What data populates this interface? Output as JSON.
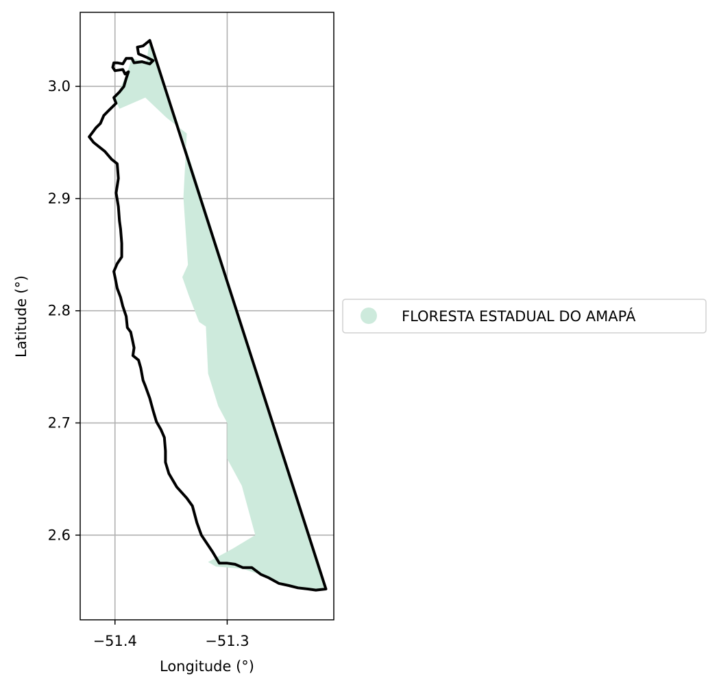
{
  "chart_data": {
    "type": "map",
    "xlabel": "Longitude (°)",
    "ylabel": "Latitude (°)",
    "xlim": [
      -51.431,
      -51.205
    ],
    "ylim": [
      2.5245,
      3.066
    ],
    "x_ticks": [
      -51.4,
      -51.3
    ],
    "x_tick_labels": [
      "−51.4",
      "−51.3"
    ],
    "y_ticks": [
      2.6,
      2.7,
      2.8,
      2.9,
      3.0
    ],
    "y_tick_labels": [
      "2.6",
      "2.7",
      "2.8",
      "2.9",
      "3.0"
    ],
    "grid": true,
    "legend": {
      "placement": "center-left outside",
      "entries": [
        {
          "label": "FLORESTA ESTADUAL DO AMAPÁ",
          "color": "#cdeadc",
          "marker": "circle"
        }
      ]
    },
    "layers": [
      {
        "name": "FLORESTA ESTADUAL DO AMAPÁ",
        "kind": "polygon-fill",
        "color": "#cdeadc",
        "coordinates": [
          [
            -51.369,
            3.041
          ],
          [
            -51.34,
            2.956
          ],
          [
            -51.238,
            2.634
          ],
          [
            -51.212,
            2.552
          ],
          [
            -51.24,
            2.553
          ],
          [
            -51.262,
            2.562
          ],
          [
            -51.286,
            2.57
          ],
          [
            -51.31,
            2.572
          ],
          [
            -51.317,
            2.576
          ],
          [
            -51.295,
            2.588
          ],
          [
            -51.275,
            2.6
          ],
          [
            -51.287,
            2.644
          ],
          [
            -51.3,
            2.668
          ],
          [
            -51.3,
            2.7
          ],
          [
            -51.308,
            2.715
          ],
          [
            -51.317,
            2.744
          ],
          [
            -51.319,
            2.786
          ],
          [
            -51.325,
            2.79
          ],
          [
            -51.334,
            2.813
          ],
          [
            -51.34,
            2.83
          ],
          [
            -51.335,
            2.841
          ],
          [
            -51.339,
            2.901
          ],
          [
            -51.336,
            2.958
          ],
          [
            -51.354,
            2.972
          ],
          [
            -51.373,
            2.99
          ],
          [
            -51.396,
            2.98
          ],
          [
            -51.4,
            2.988
          ],
          [
            -51.39,
            3.01
          ],
          [
            -51.385,
            3.025
          ],
          [
            -51.372,
            3.022
          ]
        ]
      },
      {
        "name": "boundary",
        "kind": "outline",
        "color": "#000000",
        "coordinates": [
          [
            -51.369,
            3.041
          ],
          [
            -51.375,
            3.036
          ],
          [
            -51.38,
            3.035
          ],
          [
            -51.379,
            3.029
          ],
          [
            -51.372,
            3.026
          ],
          [
            -51.366,
            3.023
          ],
          [
            -51.369,
            3.02
          ],
          [
            -51.376,
            3.022
          ],
          [
            -51.383,
            3.021
          ],
          [
            -51.385,
            3.025
          ],
          [
            -51.39,
            3.025
          ],
          [
            -51.393,
            3.02
          ],
          [
            -51.398,
            3.021
          ],
          [
            -51.401,
            3.021
          ],
          [
            -51.402,
            3.017
          ],
          [
            -51.4,
            3.014
          ],
          [
            -51.393,
            3.015
          ],
          [
            -51.391,
            3.011
          ],
          [
            -51.388,
            3.013
          ],
          [
            -51.39,
            3.007
          ],
          [
            -51.392,
            3.0
          ],
          [
            -51.396,
            2.995
          ],
          [
            -51.401,
            2.99
          ],
          [
            -51.399,
            2.985
          ],
          [
            -51.402,
            2.982
          ],
          [
            -51.406,
            2.978
          ],
          [
            -51.41,
            2.974
          ],
          [
            -51.413,
            2.967
          ],
          [
            -51.417,
            2.963
          ],
          [
            -51.42,
            2.959
          ],
          [
            -51.423,
            2.955
          ],
          [
            -51.419,
            2.95
          ],
          [
            -51.414,
            2.946
          ],
          [
            -51.409,
            2.942
          ],
          [
            -51.403,
            2.935
          ],
          [
            -51.398,
            2.931
          ],
          [
            -51.397,
            2.918
          ],
          [
            -51.399,
            2.905
          ],
          [
            -51.397,
            2.893
          ],
          [
            -51.396,
            2.88
          ],
          [
            -51.395,
            2.873
          ],
          [
            -51.394,
            2.86
          ],
          [
            -51.394,
            2.848
          ],
          [
            -51.398,
            2.842
          ],
          [
            -51.401,
            2.835
          ],
          [
            -51.4,
            2.83
          ],
          [
            -51.398,
            2.82
          ],
          [
            -51.395,
            2.812
          ],
          [
            -51.393,
            2.804
          ],
          [
            -51.39,
            2.795
          ],
          [
            -51.389,
            2.785
          ],
          [
            -51.386,
            2.781
          ],
          [
            -51.384,
            2.772
          ],
          [
            -51.383,
            2.767
          ],
          [
            -51.384,
            2.76
          ],
          [
            -51.379,
            2.756
          ],
          [
            -51.377,
            2.749
          ],
          [
            -51.375,
            2.738
          ],
          [
            -51.373,
            2.733
          ],
          [
            -51.369,
            2.722
          ],
          [
            -51.366,
            2.711
          ],
          [
            -51.363,
            2.701
          ],
          [
            -51.359,
            2.694
          ],
          [
            -51.356,
            2.687
          ],
          [
            -51.355,
            2.675
          ],
          [
            -51.355,
            2.665
          ],
          [
            -51.352,
            2.655
          ],
          [
            -51.345,
            2.643
          ],
          [
            -51.336,
            2.633
          ],
          [
            -51.331,
            2.626
          ],
          [
            -51.327,
            2.611
          ],
          [
            -51.323,
            2.6
          ],
          [
            -51.313,
            2.585
          ],
          [
            -51.307,
            2.575
          ],
          [
            -51.3,
            2.575
          ],
          [
            -51.293,
            2.574
          ],
          [
            -51.286,
            2.571
          ],
          [
            -51.278,
            2.571
          ],
          [
            -51.27,
            2.565
          ],
          [
            -51.263,
            2.562
          ],
          [
            -51.254,
            2.557
          ],
          [
            -51.245,
            2.555
          ],
          [
            -51.237,
            2.553
          ],
          [
            -51.228,
            2.552
          ],
          [
            -51.221,
            2.551
          ],
          [
            -51.212,
            2.552
          ],
          [
            -51.369,
            3.041
          ]
        ]
      }
    ]
  }
}
